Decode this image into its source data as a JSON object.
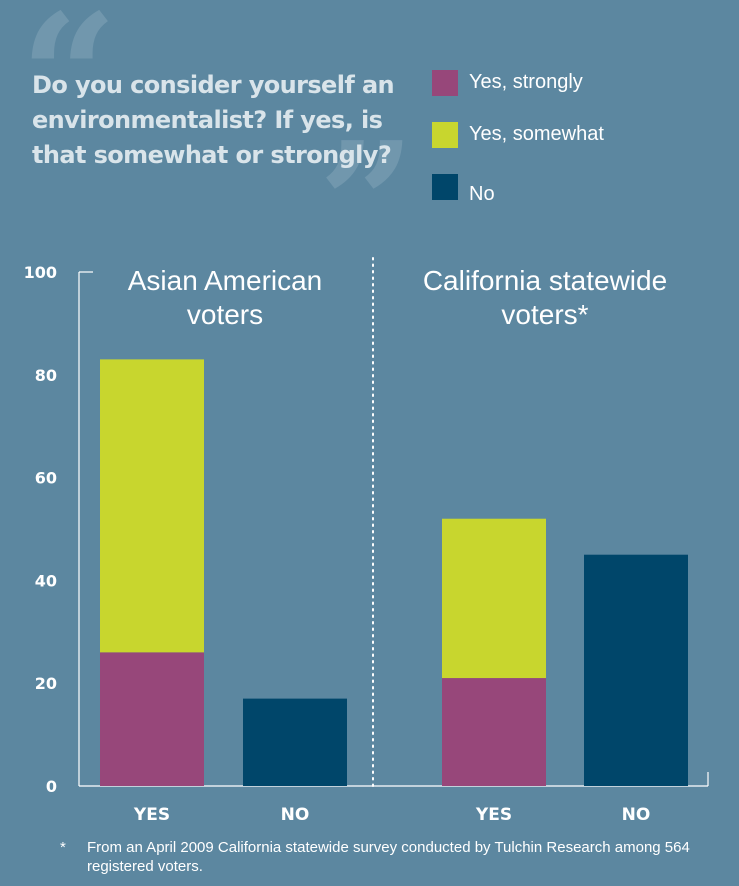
{
  "question": "Do you consider yourself an\nenvironmentalist? If yes, is\nthat somewhat or strongly?",
  "legend": [
    {
      "label": "Yes, strongly",
      "color": "#97477a"
    },
    {
      "label": "Yes, somewhat",
      "color": "#c8d62e"
    },
    {
      "label": "No",
      "color": "#00466a"
    }
  ],
  "footnote": {
    "marker": "*",
    "text": "From an April 2009 California statewide survey conducted by Tulchin Research among 564 registered voters."
  },
  "chart_data": {
    "type": "bar",
    "stacked": true,
    "ylim": [
      0,
      100
    ],
    "yticks": [
      0,
      20,
      40,
      60,
      80,
      100
    ],
    "grid": false,
    "legend_position": "top-right",
    "panels": [
      {
        "title_lines": [
          "Asian American",
          "voters"
        ],
        "categories": [
          "YES",
          "NO"
        ],
        "series": [
          {
            "name": "Yes, strongly",
            "values": [
              26,
              0
            ]
          },
          {
            "name": "Yes, somewhat",
            "values": [
              57,
              0
            ]
          },
          {
            "name": "No",
            "values": [
              0,
              17
            ]
          }
        ]
      },
      {
        "title_lines": [
          "California statewide",
          "voters*"
        ],
        "categories": [
          "YES",
          "NO"
        ],
        "series": [
          {
            "name": "Yes, strongly",
            "values": [
              21,
              0
            ]
          },
          {
            "name": "Yes, somewhat",
            "values": [
              31,
              0
            ]
          },
          {
            "name": "No",
            "values": [
              0,
              45
            ]
          }
        ]
      }
    ]
  }
}
